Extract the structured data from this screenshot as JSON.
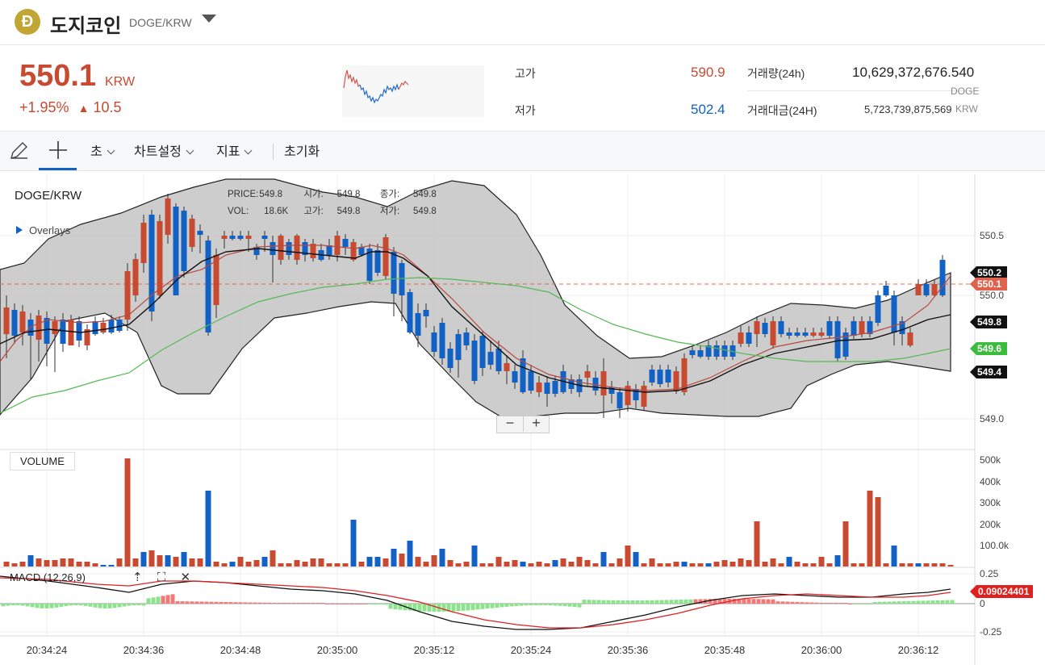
{
  "header": {
    "logo_letter": "Ð",
    "coin_name": "도지코인",
    "pair": "DOGE/KRW"
  },
  "ticker": {
    "price": "550.1",
    "unit": "KRW",
    "change_pct": "+1.95%",
    "change_arrow": "▲",
    "change_amt": "10.5",
    "high_label": "고가",
    "high_value": "590.9",
    "low_label": "저가",
    "low_value": "502.4",
    "volume_label": "거래량(24h)",
    "volume_value": "10,629,372,676.540",
    "volume_unit": "DOGE",
    "amount_label": "거래대금(24H)",
    "amount_value": "5,723,739,875,569",
    "amount_unit": "KRW",
    "colors": {
      "up": "#c84a31",
      "down": "#1261c4"
    }
  },
  "toolbar": {
    "draw_icon": "pencil-icon",
    "crosshair_icon": "crosshair-icon",
    "interval": "초",
    "chart_settings": "차트설정",
    "indicators": "지표",
    "reset": "초기화"
  },
  "chart": {
    "title": "DOGE/KRW",
    "overlays": "Overlays",
    "info": {
      "price_label": "PRICE:",
      "price": "549.8",
      "open_label": "시가:",
      "open": "549.8",
      "close_label": "종가:",
      "close": "549.8",
      "vol_label": "VOL:",
      "vol": "18.6K",
      "high_label": "고가:",
      "high": "549.8",
      "low_label": "저가:",
      "low": "549.8"
    },
    "price_axis": [
      "550.5",
      "550.0",
      "549.0"
    ],
    "price_badges": [
      {
        "text": "550.2",
        "color": "#111111"
      },
      {
        "text": "550.1",
        "color": "#e0624e"
      },
      {
        "text": "549.8",
        "color": "#111111"
      },
      {
        "text": "549.6",
        "color": "#3cbc3c"
      },
      {
        "text": "549.4",
        "color": "#111111"
      }
    ],
    "volume_label": "VOLUME",
    "volume_axis": [
      "500k",
      "400k",
      "300k",
      "200k",
      "100.0k"
    ],
    "macd_label": "MACD (12,26,9)",
    "macd_axis": [
      "0.25",
      "0",
      "-0.25"
    ],
    "macd_value": "0.09024401",
    "time_axis": [
      "20:34:24",
      "20:34:36",
      "20:34:48",
      "20:35:00",
      "20:35:12",
      "20:35:24",
      "20:35:36",
      "20:35:48",
      "20:36:00",
      "20:36:12"
    ],
    "zoom_minus": "−",
    "zoom_plus": "+"
  }
}
